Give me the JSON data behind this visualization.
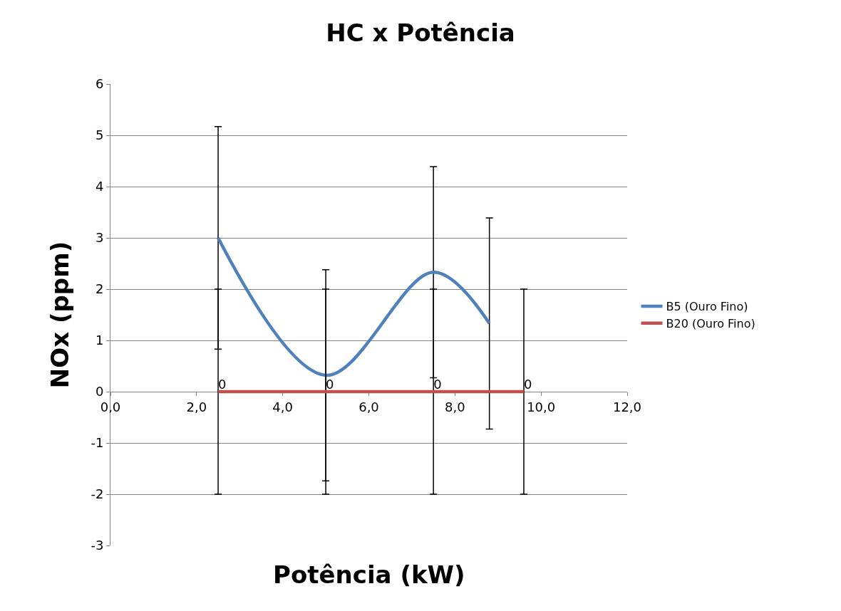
{
  "chart_data": {
    "type": "line",
    "title": "HC x Potência",
    "xlabel": "Potência (kW)",
    "ylabel": "NOx (ppm)",
    "xlim": [
      0,
      12
    ],
    "xticks": [
      {
        "value": 0,
        "label": "0,0"
      },
      {
        "value": 2,
        "label": "2,0"
      },
      {
        "value": 4,
        "label": "4,0"
      },
      {
        "value": 6,
        "label": "6,0"
      },
      {
        "value": 8,
        "label": "8,0"
      },
      {
        "value": 10,
        "label": "10,0"
      },
      {
        "value": 12,
        "label": "12,0"
      }
    ],
    "ylim": [
      -3,
      6
    ],
    "yticks": [
      -3,
      -2,
      -1,
      0,
      1,
      2,
      3,
      4,
      5,
      6
    ],
    "grid": "y",
    "legend": "right",
    "marker": "none",
    "line_style": "solid",
    "series": [
      {
        "name": "B5 (Ouro Fino)",
        "color": "#4f81bd",
        "x": [
          2.5,
          5.0,
          7.5,
          8.8
        ],
        "values": [
          3.0,
          0.32,
          2.33,
          1.33
        ],
        "errors": [
          2.17,
          2.06,
          2.06,
          2.06
        ]
      },
      {
        "name": "B20 (Ouro Fino)",
        "color": "#c0504d",
        "x": [
          2.5,
          5.0,
          7.5,
          9.6
        ],
        "values": [
          0,
          0,
          0,
          0
        ],
        "errors": [
          2,
          2,
          2,
          2
        ],
        "value_labels": [
          "0",
          "0",
          "0",
          "0"
        ]
      }
    ]
  }
}
